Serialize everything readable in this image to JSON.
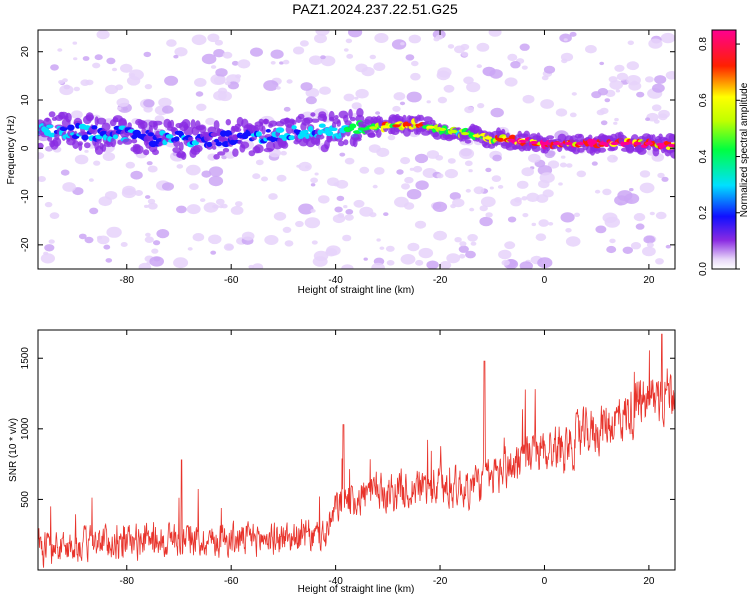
{
  "title": "PAZ1.2024.237.22.51.G25",
  "chart_data": [
    {
      "type": "heatmap",
      "title": "PAZ1.2024.237.22.51.G25",
      "xlabel": "Height of straight line (km)",
      "ylabel": "Frequency (Hz)",
      "xlim": [
        -97,
        25
      ],
      "ylim": [
        -25,
        24.5
      ],
      "xticks": [
        -80,
        -60,
        -40,
        -20,
        0,
        20
      ],
      "yticks": [
        -20,
        -10,
        0,
        10,
        20
      ],
      "colorbar": {
        "label": "Normalized spectral amplitude",
        "range": [
          0,
          0.85
        ],
        "ticks": [
          0.0,
          0.2,
          0.4,
          0.6,
          0.8
        ],
        "colormap": "rainbow-white-violet-blue-cyan-green-yellow-red-magenta"
      },
      "ridge_frequency": {
        "x": [
          -96,
          -90,
          -85,
          -80,
          -75,
          -70,
          -65,
          -60,
          -55,
          -50,
          -45,
          -40,
          -35,
          -30,
          -25,
          -20,
          -15,
          -10,
          -5,
          0,
          5,
          10,
          15,
          20,
          25
        ],
        "y": [
          4,
          3.5,
          3,
          3,
          2,
          2,
          1.5,
          2,
          2.5,
          3,
          3.5,
          3.5,
          4,
          4.5,
          5,
          4,
          3,
          2,
          1.5,
          1,
          1,
          1,
          1,
          1,
          0.5
        ]
      },
      "ridge_amplitude": {
        "x": [
          -96,
          -90,
          -85,
          -80,
          -75,
          -70,
          -65,
          -60,
          -55,
          -50,
          -45,
          -40,
          -35,
          -30,
          -25,
          -20,
          -15,
          -10,
          -5,
          0,
          5,
          10,
          15,
          20,
          25
        ],
        "y": [
          0.2,
          0.2,
          0.18,
          0.2,
          0.15,
          0.2,
          0.15,
          0.12,
          0.2,
          0.2,
          0.25,
          0.25,
          0.35,
          0.55,
          0.6,
          0.45,
          0.4,
          0.55,
          0.75,
          0.7,
          0.65,
          0.7,
          0.75,
          0.7,
          0.65
        ]
      }
    },
    {
      "type": "line",
      "xlabel": "Height of straight line (km)",
      "ylabel": "SNR (10 * v/v)",
      "xlim": [
        -97,
        25
      ],
      "ylim": [
        0,
        1700
      ],
      "xticks": [
        -80,
        -60,
        -40,
        -20,
        0,
        20
      ],
      "yticks": [
        500,
        1000,
        1500
      ],
      "color": "#e8332b",
      "trend": {
        "x": [
          -97,
          -90,
          -80,
          -70,
          -60,
          -50,
          -42,
          -39,
          -30,
          -20,
          -15,
          -10,
          -5,
          0,
          5,
          10,
          15,
          20,
          25
        ],
        "y": [
          150,
          170,
          200,
          220,
          210,
          230,
          240,
          500,
          560,
          600,
          580,
          650,
          780,
          850,
          900,
          1000,
          1080,
          1200,
          1300
        ]
      },
      "spread": 160,
      "peaks": [
        {
          "x": -69.5,
          "y": 780
        },
        {
          "x": -38.5,
          "y": 1030
        },
        {
          "x": -11.5,
          "y": 1480
        },
        {
          "x": 22.5,
          "y": 1670
        }
      ]
    }
  ]
}
